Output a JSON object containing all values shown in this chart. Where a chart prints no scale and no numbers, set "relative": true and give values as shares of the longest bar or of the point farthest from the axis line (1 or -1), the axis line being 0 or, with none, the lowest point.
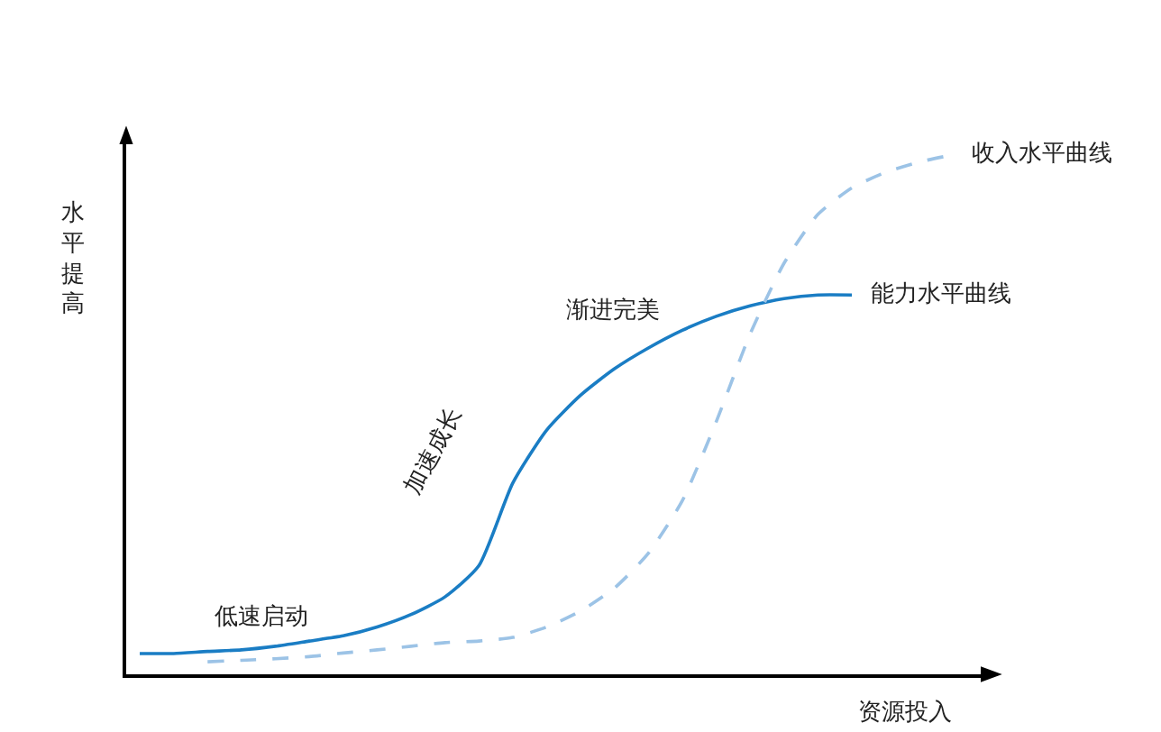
{
  "chart_data": {
    "type": "line",
    "relative": true,
    "legend": false,
    "xlabel": "资源投入",
    "ylabel": "水平提高",
    "categories": [
      null,
      null,
      null,
      null,
      null,
      null,
      null,
      null,
      null,
      null,
      null,
      null,
      null,
      null,
      null,
      null,
      null,
      null,
      null,
      null,
      null,
      null,
      null,
      null,
      null
    ],
    "series": [
      {
        "name": "能力水平曲线",
        "color": "#1a7dc4",
        "line_style": "solid",
        "values": [
          0.04,
          0.04,
          0.044,
          0.047,
          0.054,
          0.064,
          0.074,
          0.091,
          0.115,
          0.149,
          0.209,
          0.368,
          0.47,
          0.537,
          0.588,
          0.628,
          0.662,
          0.689,
          0.709,
          0.723,
          0.73,
          0.73,
          null,
          null,
          null
        ]
      },
      {
        "name": "收入水平曲线",
        "color": "#9cc3e6",
        "line_style": "dashed",
        "values": [
          null,
          null,
          0.024,
          0.027,
          0.03,
          0.034,
          0.041,
          0.047,
          0.054,
          0.061,
          0.064,
          0.071,
          0.091,
          0.122,
          0.166,
          0.233,
          0.334,
          0.486,
          0.655,
          0.791,
          0.885,
          0.936,
          0.966,
          0.986,
          1
        ]
      }
    ],
    "annotations": [
      "低速启动",
      "加速成长",
      "渐进完美"
    ]
  }
}
